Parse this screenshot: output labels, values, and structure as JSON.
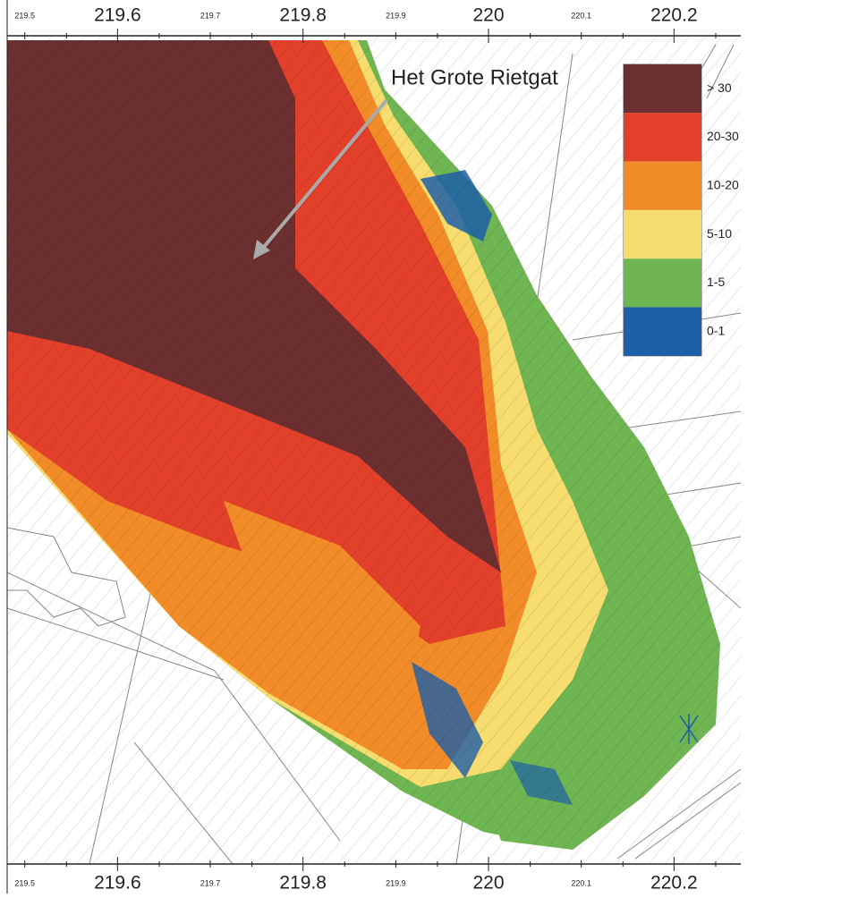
{
  "map": {
    "annotation": "Het Grote Rietgat",
    "axis": {
      "xlim": [
        219.481,
        220.272
      ],
      "ticks": [
        219.5,
        219.6,
        219.7,
        219.8,
        219.9,
        220,
        220.1,
        220.2
      ]
    },
    "legend": [
      {
        "label": "> 30",
        "color": "#6b2f2f"
      },
      {
        "label": "20-30",
        "color": "#e2402a"
      },
      {
        "label": "10-20",
        "color": "#f28c28"
      },
      {
        "label": "5-10",
        "color": "#f7dc6f"
      },
      {
        "label": "1-5",
        "color": "#6fb552"
      },
      {
        "label": "0-1",
        "color": "#1d5fa8"
      }
    ]
  }
}
